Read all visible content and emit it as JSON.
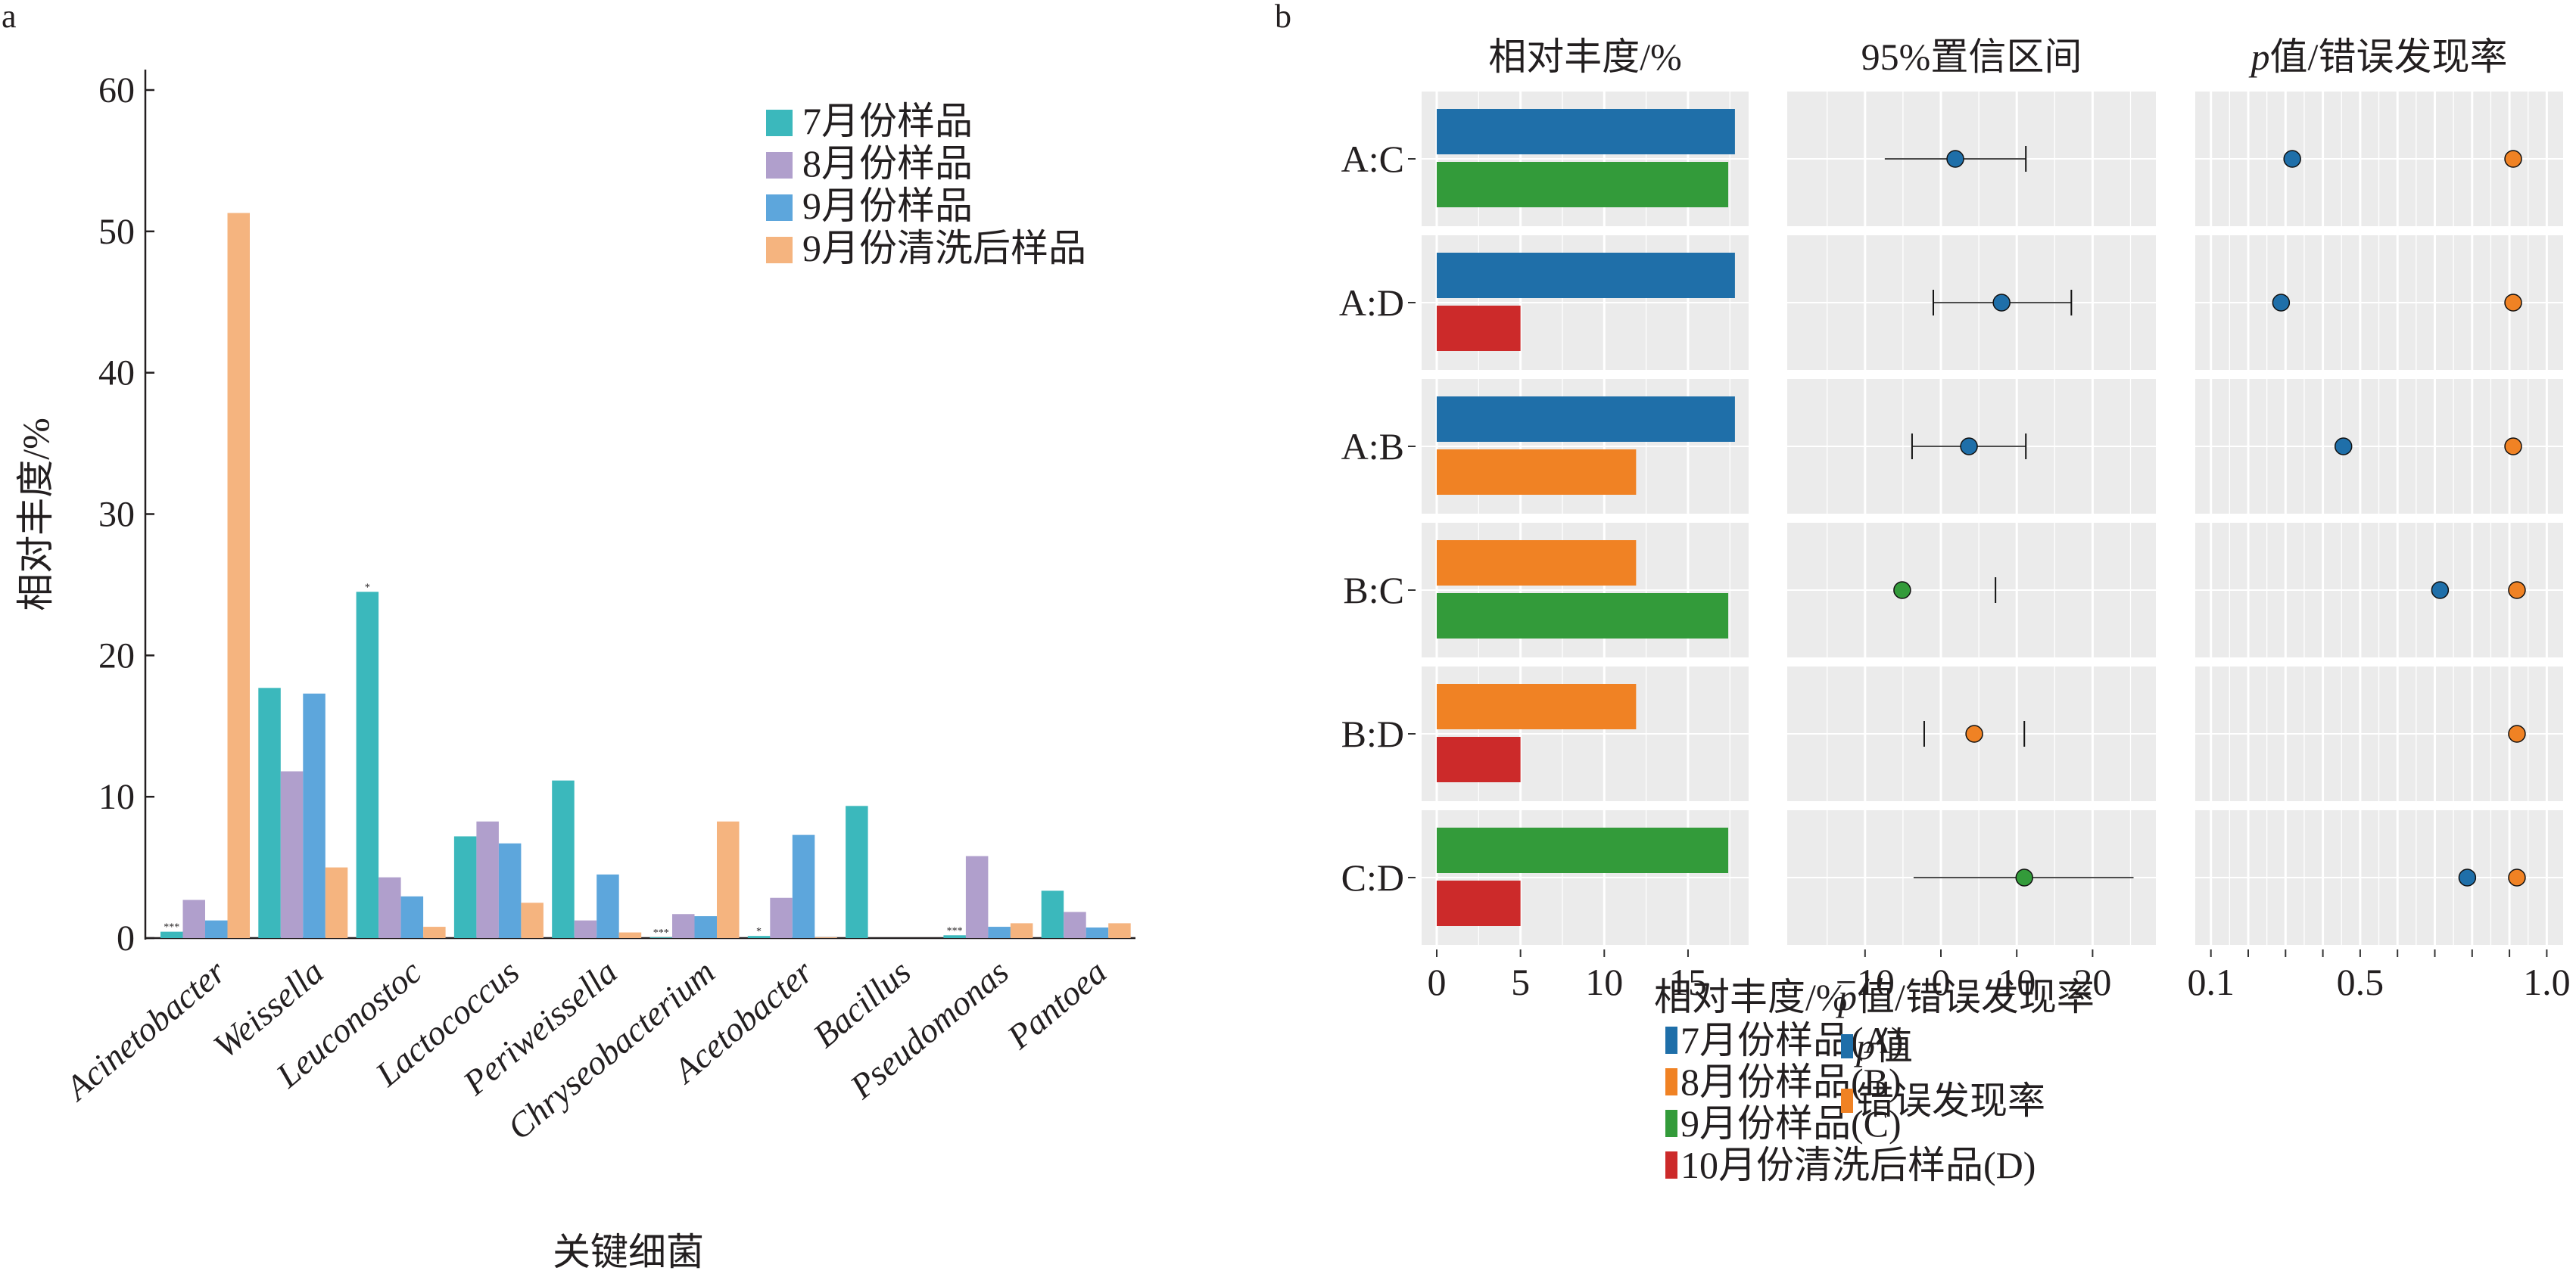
{
  "chart_data": [
    {
      "panel": "a",
      "type": "bar",
      "panel_label": "a",
      "xlabel": "关键细菌",
      "ylabel": "相对丰度/%",
      "ylim": [
        0,
        60
      ],
      "yticks": [
        0,
        10,
        20,
        30,
        40,
        50,
        60
      ],
      "grid": false,
      "legend_position": "top-right",
      "categories": [
        "Acinetobacter",
        "Weissella",
        "Leuconostoc",
        "Lactococcus",
        "Periweissella",
        "Chryseobacterium",
        "Acetobacter",
        "Bacillus",
        "Pseudomonas",
        "Pantoea"
      ],
      "series": [
        {
          "name": "7月份样品",
          "color": "#3bb8bc",
          "values": [
            0.45,
            17.7,
            24.5,
            7.2,
            11.15,
            0.05,
            0.15,
            9.35,
            0.2,
            3.35
          ]
        },
        {
          "name": "8月份样品",
          "color": "#b09fcc",
          "values": [
            2.7,
            11.8,
            4.3,
            8.25,
            1.25,
            1.7,
            2.85,
            0.0,
            5.8,
            1.85
          ]
        },
        {
          "name": "9月份样品",
          "color": "#5da6dc",
          "values": [
            1.25,
            17.3,
            2.95,
            6.7,
            4.5,
            1.55,
            7.3,
            0.0,
            0.8,
            0.75
          ]
        },
        {
          "name": "9月份清洗后样品",
          "color": "#f5b47f",
          "values": [
            51.3,
            5.0,
            0.8,
            2.5,
            0.4,
            8.25,
            0.05,
            0.0,
            1.05,
            1.05
          ]
        }
      ],
      "annotations": [
        {
          "category": "Acinetobacter",
          "series": "7月份样品",
          "text": "***"
        },
        {
          "category": "Leuconostoc",
          "series": "7月份样品",
          "text": "*"
        },
        {
          "category": "Chryseobacterium",
          "series": "7月份样品",
          "text": "***"
        },
        {
          "category": "Acetobacter",
          "series": "7月份样品",
          "text": "*"
        },
        {
          "category": "Pseudomonas",
          "series": "7月份样品",
          "text": "***"
        }
      ]
    },
    {
      "panel": "b",
      "panel_label": "b",
      "type": "bar",
      "subpanel": "relative-abundance",
      "title": "相对丰度/%",
      "xlim": [
        0,
        18
      ],
      "xticks": [
        0,
        5,
        10,
        15
      ],
      "groups": [
        "A:C",
        "A:D",
        "A:B",
        "B:C",
        "B:D",
        "C:D"
      ],
      "pairs": [
        {
          "group": "A:C",
          "bars": [
            {
              "sample": "A",
              "value": 17.8
            },
            {
              "sample": "C",
              "value": 17.4
            }
          ]
        },
        {
          "group": "A:D",
          "bars": [
            {
              "sample": "A",
              "value": 17.8
            },
            {
              "sample": "D",
              "value": 5.0
            }
          ]
        },
        {
          "group": "A:B",
          "bars": [
            {
              "sample": "A",
              "value": 17.8
            },
            {
              "sample": "B",
              "value": 11.9
            }
          ]
        },
        {
          "group": "B:C",
          "bars": [
            {
              "sample": "B",
              "value": 11.9
            },
            {
              "sample": "C",
              "value": 17.4
            }
          ]
        },
        {
          "group": "B:D",
          "bars": [
            {
              "sample": "B",
              "value": 11.9
            },
            {
              "sample": "D",
              "value": 5.0
            }
          ]
        },
        {
          "group": "C:D",
          "bars": [
            {
              "sample": "C",
              "value": 17.4
            },
            {
              "sample": "D",
              "value": 5.0
            }
          ]
        }
      ],
      "legend_title": "相对丰度/%",
      "legend": [
        {
          "key": "A",
          "label": "7月份样品(A)",
          "color": "#1f6fa9"
        },
        {
          "key": "B",
          "label": "8月份样品(B)",
          "color": "#f08224"
        },
        {
          "key": "C",
          "label": "9月份样品(C)",
          "color": "#339b3a"
        },
        {
          "key": "D",
          "label": "10月份清洗后样品(D)",
          "color": "#cc2a2a"
        }
      ]
    },
    {
      "panel": "b",
      "type": "scatter",
      "subpanel": "confidence-interval",
      "title": "95%置信区间",
      "xlim": [
        -16,
        27
      ],
      "xticks": [
        -10,
        0,
        10,
        20
      ],
      "xtick_labels": [
        "−10",
        "0",
        "10",
        "20"
      ],
      "rows": [
        {
          "group": "A:C",
          "estimate": 1.9,
          "lower": -7.4,
          "upper": 11.2,
          "color_key": "A",
          "lower_cap": false,
          "upper_cap": true
        },
        {
          "group": "A:D",
          "estimate": 8.0,
          "lower": -1.0,
          "upper": 17.2,
          "color_key": "A",
          "lower_cap": true,
          "upper_cap": true
        },
        {
          "group": "A:B",
          "estimate": 3.7,
          "lower": -3.8,
          "upper": 11.2,
          "color_key": "A",
          "lower_cap": true,
          "upper_cap": true
        },
        {
          "group": "B:C",
          "estimate": -5.1,
          "lower": null,
          "upper": 7.2,
          "color_key": "C",
          "lower_cap": false,
          "upper_cap": true,
          "line": false
        },
        {
          "group": "B:D",
          "estimate": 4.4,
          "lower": -2.2,
          "upper": 11.0,
          "color_key": "B",
          "lower_cap": true,
          "upper_cap": true,
          "line": false
        },
        {
          "group": "C:D",
          "estimate": 11.0,
          "lower": -3.6,
          "upper": 25.4,
          "color_key": "C",
          "lower_cap": false,
          "upper_cap": false
        }
      ]
    },
    {
      "panel": "b",
      "type": "scatter",
      "subpanel": "p-value-fdr",
      "title": "p值/错误发现率",
      "title_italic_prefix": "p",
      "title_rest": "值/错误发现率",
      "xlim": [
        0.085,
        1.02
      ],
      "xticks": [
        0.1,
        0.2,
        0.3,
        0.4,
        0.5,
        0.6,
        0.7,
        0.8,
        0.9,
        1.0
      ],
      "xtick_labels": {
        "0.1": "0.1",
        "0.5": "0.5",
        "1.0": "1.0"
      },
      "rows": [
        {
          "group": "A:C",
          "p_value": 0.318,
          "fdr": 0.91
        },
        {
          "group": "A:D",
          "p_value": 0.288,
          "fdr": 0.91
        },
        {
          "group": "A:B",
          "p_value": 0.455,
          "fdr": 0.91
        },
        {
          "group": "B:C",
          "p_value": 0.714,
          "fdr": 0.92
        },
        {
          "group": "B:D",
          "p_value": null,
          "fdr": 0.92
        },
        {
          "group": "C:D",
          "p_value": 0.787,
          "fdr": 0.92
        }
      ],
      "legend_title_italic": "p",
      "legend_title_rest": "值/错误发现率",
      "legend": [
        {
          "key": "p",
          "label_italic": "p",
          "label_rest": "值",
          "color": "#1f6fa9"
        },
        {
          "key": "fdr",
          "label_italic": "",
          "label_rest": "错误发现率",
          "color": "#f08224"
        }
      ]
    }
  ]
}
